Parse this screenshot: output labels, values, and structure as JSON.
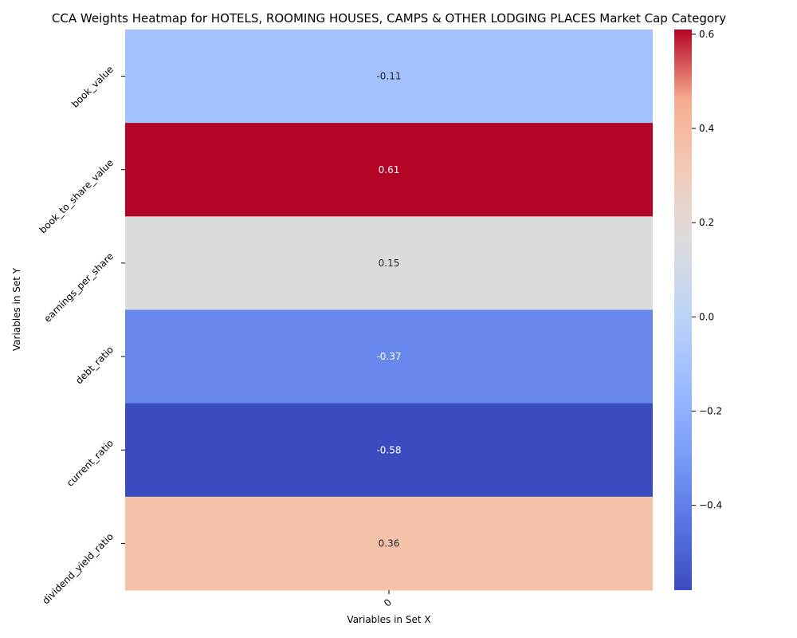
{
  "chart_data": {
    "type": "heatmap",
    "title": "CCA Weights Heatmap for HOTELS, ROOMING HOUSES, CAMPS & OTHER LODGING PLACES Market Cap Category",
    "xlabel": "Variables in Set X",
    "ylabel": "Variables in Set Y",
    "x_categories": [
      "0"
    ],
    "y_categories": [
      "book_value",
      "book_to_share_value",
      "earnings_per_share",
      "debt_ratio",
      "current_ratio",
      "dividend_yield_ratio"
    ],
    "values": [
      [
        -0.11
      ],
      [
        0.61
      ],
      [
        0.15
      ],
      [
        -0.37
      ],
      [
        -0.58
      ],
      [
        0.36
      ]
    ],
    "colormap": "coolwarm",
    "colorbar": {
      "min": -0.58,
      "max": 0.61,
      "ticks": [
        -0.4,
        -0.2,
        0.0,
        0.2,
        0.4,
        0.6
      ],
      "tick_labels": [
        "−0.4",
        "−0.2",
        "0.0",
        "0.2",
        "0.4",
        "0.6"
      ]
    },
    "annotations": [
      "-0.11",
      "0.61",
      "0.15",
      "-0.37",
      "-0.58",
      "0.36"
    ]
  }
}
